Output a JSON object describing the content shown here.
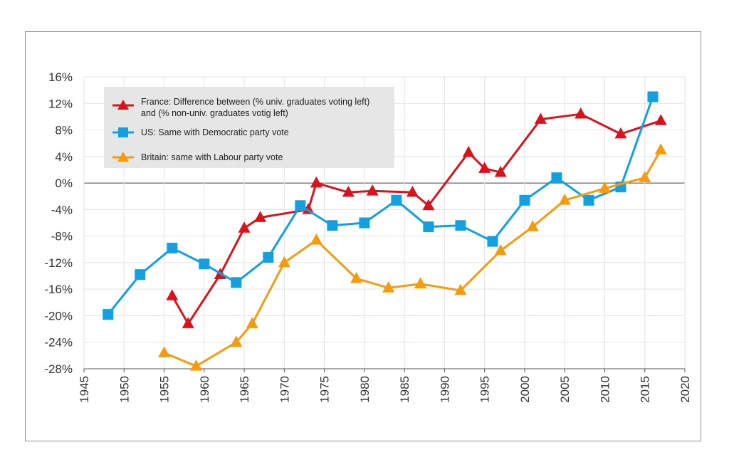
{
  "chart_data": {
    "type": "line",
    "title": "",
    "xlabel": "",
    "ylabel": "",
    "xlim": [
      1945,
      2020
    ],
    "ylim": [
      -28,
      16
    ],
    "x_ticks": [
      "1945",
      "1950",
      "1955",
      "1960",
      "1965",
      "1970",
      "1975",
      "1980",
      "1985",
      "1990",
      "1995",
      "2000",
      "2005",
      "2010",
      "2015",
      "2020"
    ],
    "y_ticks": [
      "16%",
      "12%",
      "8%",
      "4%",
      "0%",
      "-4%",
      "-8%",
      "-12%",
      "-16%",
      "-20%",
      "-24%",
      "-28%"
    ],
    "grid": true,
    "legend_position": "top-left",
    "legend_lines": [
      [
        "France: Difference between (% univ. graduates voting left)",
        "and (% non-univ. graduates votig left)"
      ],
      [
        "US: Same with Democratic party vote"
      ],
      [
        "Britain: same with Labour party vote"
      ]
    ],
    "series": [
      {
        "color": "#d7141e",
        "marker": "triangle",
        "x": [
          1956,
          1958,
          1962,
          1965,
          1967,
          1973,
          1974,
          1978,
          1981,
          1986,
          1988,
          1993,
          1995,
          1997,
          2002,
          2007,
          2012,
          2017
        ],
        "y": [
          -17,
          -21.2,
          -13.8,
          -6.8,
          -5.2,
          -4.0,
          0.0,
          -1.4,
          -1.2,
          -1.4,
          -3.4,
          4.6,
          2.2,
          1.6,
          9.6,
          10.4,
          7.4,
          9.4
        ]
      },
      {
        "color": "#159fdc",
        "marker": "square",
        "x": [
          1948,
          1952,
          1956,
          1960,
          1964,
          1968,
          1972,
          1976,
          1980,
          1984,
          1988,
          1992,
          1996,
          2000,
          2004,
          2008,
          2012,
          2016
        ],
        "y": [
          -19.8,
          -13.8,
          -9.8,
          -12.2,
          -15.0,
          -11.2,
          -3.4,
          -6.4,
          -6.0,
          -2.6,
          -6.6,
          -6.4,
          -8.8,
          -2.6,
          0.8,
          -2.6,
          -0.6,
          13.0
        ]
      },
      {
        "color": "#f39c12",
        "marker": "triangle",
        "x": [
          1955,
          1959,
          1964,
          1966,
          1970,
          1974,
          1979,
          1983,
          1987,
          1992,
          1997,
          2001,
          2005,
          2010,
          2015,
          2017
        ],
        "y": [
          -25.6,
          -27.6,
          -24.0,
          -21.2,
          -12.0,
          -8.6,
          -14.4,
          -15.8,
          -15.2,
          -16.2,
          -10.2,
          -6.6,
          -2.6,
          -0.8,
          0.8,
          5.0
        ]
      }
    ]
  }
}
